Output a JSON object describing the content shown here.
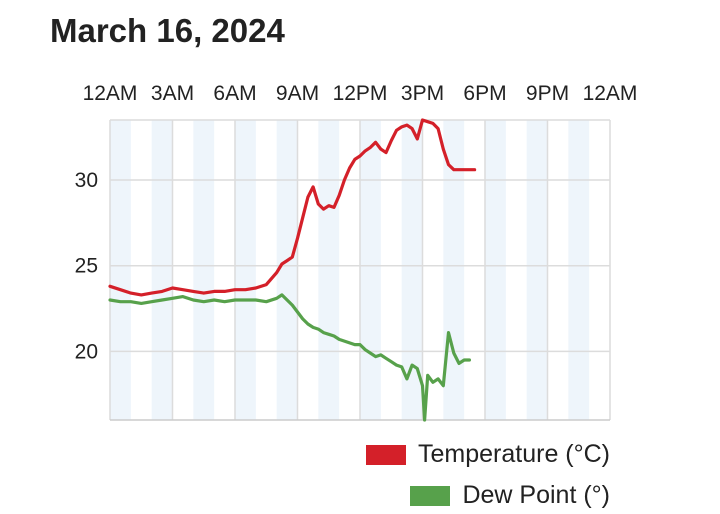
{
  "title": "March 16, 2024",
  "chart_data": {
    "type": "line",
    "title": "March 16, 2024",
    "x_ticks": [
      "12AM",
      "3AM",
      "6AM",
      "9AM",
      "12PM",
      "3PM",
      "6PM",
      "9PM",
      "12AM"
    ],
    "x_unit": "hour",
    "xlim": [
      0,
      24
    ],
    "y_ticks": [
      20,
      25,
      30
    ],
    "ylim": [
      16,
      33.5
    ],
    "grid": true,
    "legend": "bottom-right",
    "series": [
      {
        "name": "Temperature (°C)",
        "color": "#d42029",
        "x": [
          0,
          0.5,
          1,
          1.5,
          2,
          2.5,
          3,
          3.5,
          4,
          4.5,
          5,
          5.5,
          6,
          6.5,
          7,
          7.5,
          8,
          8.25,
          8.5,
          8.75,
          9,
          9.25,
          9.5,
          9.75,
          10,
          10.25,
          10.5,
          10.75,
          11,
          11.25,
          11.5,
          11.75,
          12,
          12.25,
          12.5,
          12.75,
          13,
          13.25,
          13.5,
          13.75,
          14,
          14.25,
          14.5,
          14.75,
          15,
          15.25,
          15.5,
          15.75,
          16,
          16.25,
          16.5,
          16.75,
          17,
          17.25,
          17.5
        ],
        "values": [
          23.8,
          23.6,
          23.4,
          23.3,
          23.4,
          23.5,
          23.7,
          23.6,
          23.5,
          23.4,
          23.5,
          23.5,
          23.6,
          23.6,
          23.7,
          23.9,
          24.6,
          25.1,
          25.3,
          25.5,
          26.6,
          27.8,
          29.0,
          29.6,
          28.6,
          28.3,
          28.5,
          28.4,
          29.1,
          30.0,
          30.7,
          31.2,
          31.4,
          31.7,
          31.9,
          32.2,
          31.8,
          31.6,
          32.3,
          32.9,
          33.1,
          33.2,
          33.0,
          32.4,
          33.5,
          33.4,
          33.3,
          33.0,
          31.8,
          30.9,
          30.6,
          30.6,
          30.6,
          30.6,
          30.6
        ]
      },
      {
        "name": "Dew Point (°)",
        "color": "#57a14b",
        "x": [
          0,
          0.5,
          1,
          1.5,
          2,
          2.5,
          3,
          3.5,
          4,
          4.5,
          5,
          5.5,
          6,
          6.5,
          7,
          7.5,
          8,
          8.25,
          8.5,
          8.75,
          9,
          9.25,
          9.5,
          9.75,
          10,
          10.25,
          10.5,
          10.75,
          11,
          11.25,
          11.5,
          11.75,
          12,
          12.25,
          12.5,
          12.75,
          13,
          13.25,
          13.5,
          13.75,
          14,
          14.25,
          14.5,
          14.75,
          15,
          15.1,
          15.25,
          15.5,
          15.75,
          16,
          16.25,
          16.5,
          16.75,
          17,
          17.25
        ],
        "values": [
          23.0,
          22.9,
          22.9,
          22.8,
          22.9,
          23.0,
          23.1,
          23.2,
          23.0,
          22.9,
          23.0,
          22.9,
          23.0,
          23.0,
          23.0,
          22.9,
          23.1,
          23.3,
          23.0,
          22.7,
          22.3,
          21.9,
          21.6,
          21.4,
          21.3,
          21.1,
          21.0,
          20.9,
          20.7,
          20.6,
          20.5,
          20.4,
          20.4,
          20.1,
          19.9,
          19.7,
          19.8,
          19.6,
          19.4,
          19.2,
          19.1,
          18.4,
          19.2,
          19.0,
          18.0,
          16.0,
          18.6,
          18.2,
          18.4,
          18.0,
          21.1,
          19.9,
          19.3,
          19.5,
          19.5
        ]
      }
    ]
  }
}
